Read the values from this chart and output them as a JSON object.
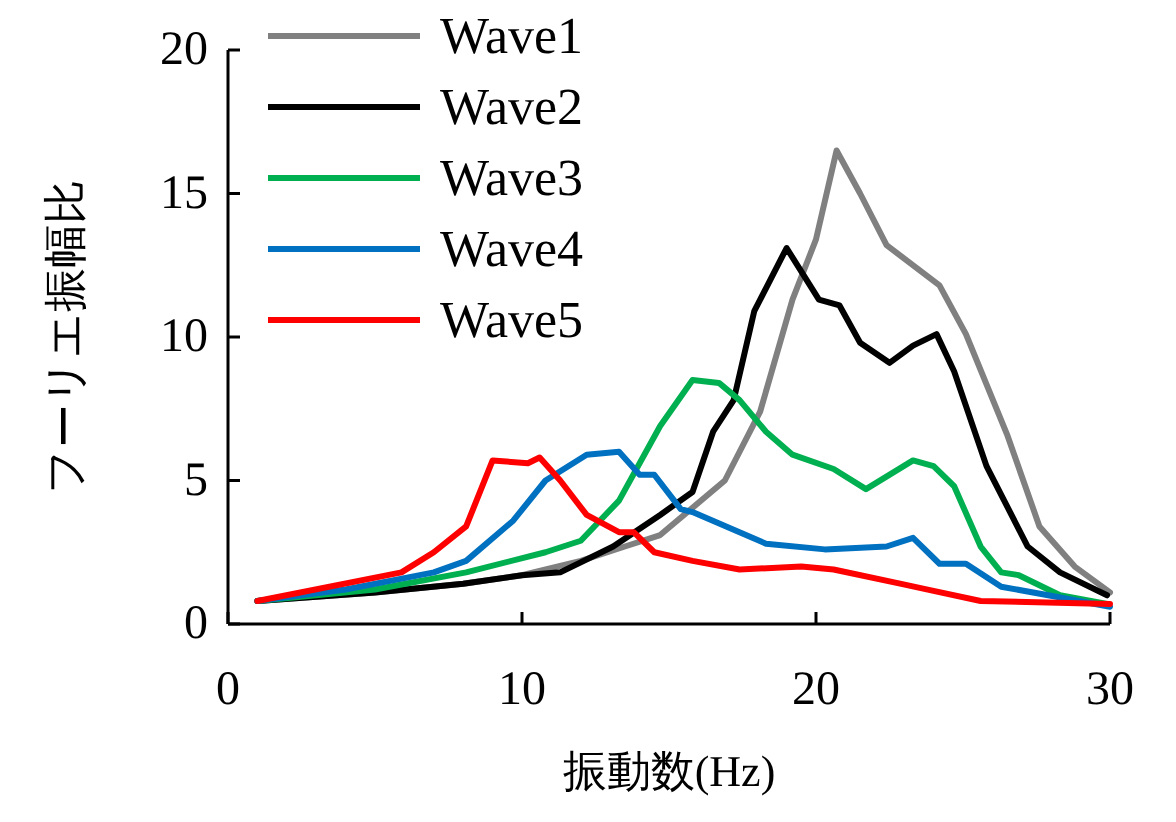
{
  "chart_data": {
    "type": "line",
    "xlabel": "振動数(Hz)",
    "ylabel": "フーリエ振幅比",
    "xlim": [
      0,
      30
    ],
    "ylim": [
      0,
      20
    ],
    "xticks": [
      0,
      10,
      20,
      30
    ],
    "yticks": [
      0,
      5,
      10,
      15,
      20
    ],
    "grid": false,
    "legend": "top left",
    "marker": "none",
    "line_style": "solid",
    "series": [
      {
        "name": "Wave1",
        "color": "#808080",
        "x": [
          1,
          5,
          8,
          10,
          12,
          13.5,
          14.7,
          16.9,
          18.1,
          19.2,
          20,
          20.7,
          21.5,
          22.4,
          24.2,
          25.1,
          26.5,
          27.6,
          28.8,
          30
        ],
        "values": [
          0.8,
          1.1,
          1.4,
          1.7,
          2.2,
          2.7,
          3.1,
          5.0,
          7.4,
          11.3,
          13.4,
          16.5,
          15.0,
          13.2,
          11.8,
          10.1,
          6.6,
          3.4,
          2.0,
          1.1
        ]
      },
      {
        "name": "Wave2",
        "color": "#000000",
        "x": [
          1,
          5,
          8,
          10,
          11.3,
          13.1,
          14.7,
          15.8,
          16.5,
          17.2,
          17.9,
          19,
          20.1,
          20.8,
          21.5,
          22.5,
          23.3,
          24.1,
          24.7,
          25.8,
          27.2,
          28.3,
          29.9
        ],
        "values": [
          0.8,
          1.1,
          1.4,
          1.7,
          1.8,
          2.7,
          3.8,
          4.6,
          6.7,
          7.8,
          10.9,
          13.1,
          11.3,
          11.1,
          9.8,
          9.1,
          9.7,
          10.1,
          8.8,
          5.5,
          2.7,
          1.8,
          1.0
        ]
      },
      {
        "name": "Wave3",
        "color": "#00b050",
        "x": [
          1,
          5,
          8.1,
          10.8,
          12,
          13.3,
          14.7,
          15.8,
          16.7,
          17.4,
          18.3,
          19.2,
          20.6,
          21.7,
          23.3,
          24,
          24.7,
          25.6,
          26.3,
          26.9,
          28.3,
          29.9
        ],
        "values": [
          0.8,
          1.2,
          1.8,
          2.5,
          2.9,
          4.3,
          6.9,
          8.5,
          8.4,
          7.8,
          6.7,
          5.9,
          5.4,
          4.7,
          5.7,
          5.5,
          4.8,
          2.7,
          1.8,
          1.7,
          1.0,
          0.7
        ]
      },
      {
        "name": "Wave4",
        "color": "#0070c0",
        "x": [
          1,
          4,
          6,
          7,
          8.1,
          9.7,
          10.8,
          12.2,
          13.3,
          14,
          14.5,
          15.4,
          15.8,
          17.4,
          18.3,
          20.3,
          22.4,
          23.3,
          24.2,
          25.1,
          26.3,
          27.9,
          30
        ],
        "values": [
          0.8,
          1.2,
          1.6,
          1.8,
          2.2,
          3.6,
          5.0,
          5.9,
          6.0,
          5.2,
          5.2,
          4.0,
          3.9,
          3.2,
          2.8,
          2.6,
          2.7,
          3.0,
          2.1,
          2.1,
          1.3,
          1.0,
          0.6
        ]
      },
      {
        "name": "Wave5",
        "color": "#ff0000",
        "x": [
          1,
          5.9,
          7,
          8.1,
          9,
          10.2,
          10.6,
          11.3,
          12.2,
          13.3,
          13.8,
          14.5,
          15.8,
          17.4,
          19.5,
          20.6,
          22.9,
          23.8,
          25.6,
          30
        ],
        "values": [
          0.8,
          1.8,
          2.5,
          3.4,
          5.7,
          5.6,
          5.8,
          5.0,
          3.8,
          3.2,
          3.2,
          2.5,
          2.2,
          1.9,
          2.0,
          1.9,
          1.4,
          1.2,
          0.8,
          0.7
        ]
      }
    ]
  }
}
